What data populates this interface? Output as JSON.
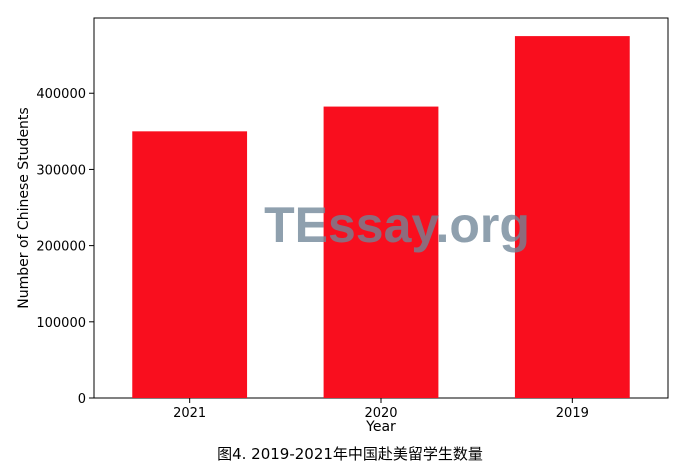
{
  "chart_data": {
    "type": "bar",
    "categories": [
      "2021",
      "2020",
      "2019"
    ],
    "values": [
      350000,
      382500,
      475000
    ],
    "ylim": [
      0,
      498750
    ],
    "yticks": [
      0,
      100000,
      200000,
      300000,
      400000
    ],
    "ytick_labels": [
      "0",
      "100000",
      "200000",
      "300000",
      "400000"
    ],
    "xlabel": "Year",
    "ylabel": "Number of Chinese Students",
    "caption": "图4. 2019-2021年中国赴美留学生数量",
    "grid": false,
    "legend": "none",
    "colors": {
      "bar": "#f90e1e",
      "axes": "#000000"
    }
  },
  "watermark": {
    "text": "TEssay.org"
  }
}
